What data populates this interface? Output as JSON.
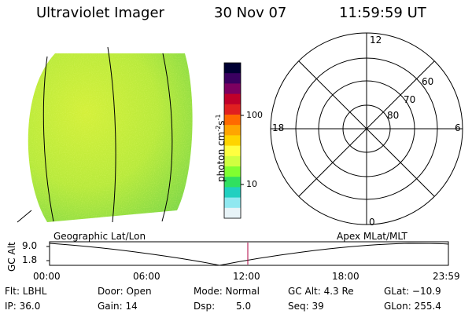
{
  "header": {
    "instrument": "Ultraviolet Imager",
    "date": "30 Nov 07",
    "time": "11:59:59 UT"
  },
  "colorbar": {
    "unit_label": "photon cm",
    "unit_exp1": "-2",
    "unit_mid": "s",
    "unit_exp2": "-1",
    "tick_100": "100",
    "tick_10": "10",
    "colors": [
      "#000033",
      "#3a0060",
      "#7d0060",
      "#c0002a",
      "#e02020",
      "#ff6a00",
      "#ffa500",
      "#ffd400",
      "#ffff40",
      "#d0ff40",
      "#80ff30",
      "#30e060",
      "#20d0c0",
      "#90e8f0",
      "#e8f4f8"
    ]
  },
  "polar_plot": {
    "mlt_labels": {
      "top": "12",
      "left": "18",
      "right": "6",
      "bottom": "0"
    },
    "lat_labels": [
      "60",
      "70",
      "80"
    ]
  },
  "timeline": {
    "label_left": "Geographic Lat/Lon",
    "label_right": "Apex MLat/MLT",
    "y_axis_title": "GC Alt",
    "y_max": "9.0",
    "y_min": "1.8",
    "x_ticks": [
      "00:00",
      "06:00",
      "12:00",
      "18:00",
      "23:59"
    ],
    "marker_color": "#b00040"
  },
  "footer": {
    "flt": "Flt: LBHL",
    "ip": "IP: 36.0",
    "door": "Door: Open",
    "gain": "Gain: 14",
    "mode": "Mode: Normal",
    "dsp_label": "Dsp:",
    "dsp_value": "5.0",
    "gc_alt": "GC Alt: 4.3 Re",
    "seq": "Seq: 39",
    "glat": "GLat: −10.9",
    "glon": "GLon: 255.4"
  }
}
